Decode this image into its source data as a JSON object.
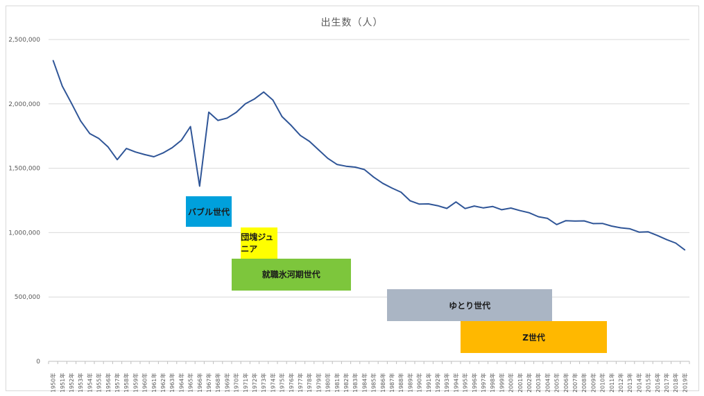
{
  "chart_data": {
    "type": "line",
    "title": "出生数（人）",
    "x": [
      "1950年",
      "1951年",
      "1952年",
      "1953年",
      "1954年",
      "1955年",
      "1956年",
      "1957年",
      "1958年",
      "1959年",
      "1960年",
      "1961年",
      "1962年",
      "1963年",
      "1964年",
      "1965年",
      "1966年",
      "1967年",
      "1968年",
      "1969年",
      "1970年",
      "1971年",
      "1972年",
      "1973年",
      "1974年",
      "1975年",
      "1976年",
      "1977年",
      "1978年",
      "1979年",
      "1980年",
      "1981年",
      "1982年",
      "1983年",
      "1984年",
      "1985年",
      "1986年",
      "1987年",
      "1988年",
      "1989年",
      "1990年",
      "1991年",
      "1992年",
      "1993年",
      "1994年",
      "1995年",
      "1996年",
      "1997年",
      "1998年",
      "1999年",
      "2000年",
      "2001年",
      "2002年",
      "2003年",
      "2004年",
      "2005年",
      "2006年",
      "2007年",
      "2008年",
      "2009年",
      "2010年",
      "2011年",
      "2012年",
      "2013年",
      "2014年",
      "2015年",
      "2016年",
      "2017年",
      "2018年",
      "2019年"
    ],
    "values": [
      2337507,
      2137689,
      2005162,
      1868040,
      1769580,
      1730692,
      1665278,
      1566713,
      1653469,
      1626088,
      1606041,
      1589372,
      1618616,
      1659521,
      1716761,
      1823697,
      1360974,
      1935647,
      1871839,
      1889815,
      1934239,
      2000973,
      2038682,
      2091983,
      2029989,
      1901440,
      1832617,
      1755100,
      1708643,
      1642580,
      1576889,
      1529455,
      1515392,
      1508687,
      1489780,
      1431577,
      1382946,
      1346658,
      1314006,
      1246802,
      1221585,
      1223245,
      1208989,
      1188282,
      1238328,
      1187064,
      1206555,
      1191665,
      1203147,
      1177669,
      1190547,
      1170662,
      1153855,
      1123610,
      1110721,
      1062530,
      1092674,
      1089818,
      1091156,
      1070036,
      1071304,
      1050806,
      1037232,
      1029817,
      1003609,
      1005721,
      977242,
      946146,
      918400,
      865239
    ],
    "ylim": [
      0,
      2500000
    ],
    "yticks": [
      "0",
      "500,000",
      "1,000,000",
      "1,500,000",
      "2,000,000",
      "2,500,000"
    ],
    "grid": true,
    "line_color": "#2f5597",
    "annotations": [
      {
        "label": "バブル世代",
        "start": "1965年",
        "end": "1969年",
        "level": 1045000,
        "top": 1280000,
        "color": "#00a0dc"
      },
      {
        "label": "団塊ジュニア",
        "start": "1971年",
        "end": "1974年",
        "level": 800000,
        "top": 1040000,
        "color": "#ffff00"
      },
      {
        "label": "就職氷河期世代",
        "start": "1970年",
        "end": "1982年",
        "level": 550000,
        "top": 800000,
        "color": "#7dc63c"
      },
      {
        "label": "ゆとり世代",
        "start": "1987年",
        "end": "2004年",
        "level": 310000,
        "top": 560000,
        "color": "#aab5c4"
      },
      {
        "label": "Z世代",
        "start": "1995年",
        "end": "2010年",
        "level": 65000,
        "top": 310000,
        "color": "#ffb800"
      }
    ]
  }
}
